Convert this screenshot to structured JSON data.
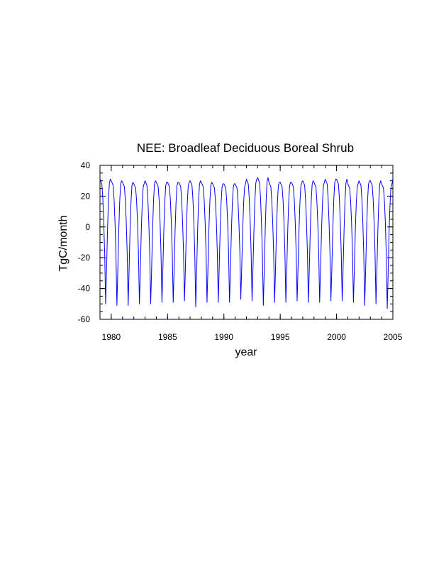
{
  "chart_data": {
    "type": "line",
    "title": "NEE: Broadleaf Deciduous Boreal Shrub",
    "xlabel": "year",
    "ylabel": "TgC/month",
    "xlim": [
      1979,
      2005
    ],
    "ylim": [
      -60,
      40
    ],
    "x_ticks": [
      1980,
      1985,
      1990,
      1995,
      2000,
      2005
    ],
    "y_ticks": [
      40,
      20,
      0,
      -20,
      -40,
      -60
    ],
    "x_minor_step": 1,
    "y_minor_step": 5,
    "grid": false,
    "series": [
      {
        "color": "#0000ff",
        "annual_peaks": [
          31,
          30,
          29,
          28,
          30,
          29,
          29,
          29,
          30,
          29,
          28,
          28,
          28,
          31,
          32,
          29,
          29,
          29,
          30,
          29,
          31,
          31,
          28,
          30,
          30,
          28,
          31
        ],
        "annual_troughs": [
          -50,
          -51,
          -51,
          -50,
          -50,
          -49,
          -49,
          -48,
          -52,
          -49,
          -49,
          -49,
          -47,
          -48,
          -51,
          -49,
          -49,
          -48,
          -49,
          -49,
          -48,
          -48,
          -49,
          -51,
          -50,
          -53
        ]
      }
    ]
  }
}
